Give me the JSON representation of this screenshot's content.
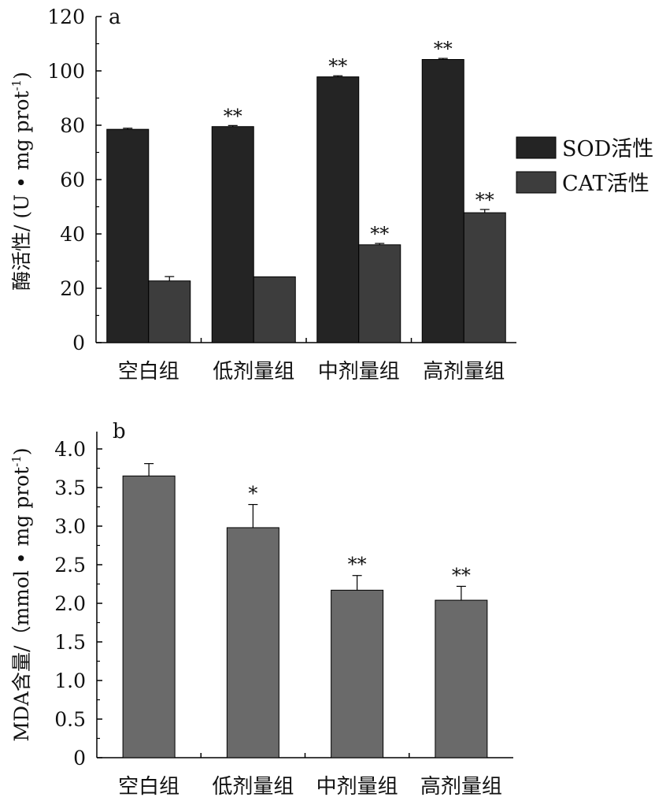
{
  "chart_data": [
    {
      "type": "bar",
      "panel_label": "a",
      "ylabel": "酶活性/ (U • mg prot",
      "ylabel_sup": "-1",
      "ylabel_tail": ")",
      "ylim": [
        0,
        120
      ],
      "yticks": [
        0,
        20,
        40,
        60,
        80,
        100,
        120
      ],
      "categories": [
        "空白组",
        "低剂量组",
        "中剂量组",
        "高剂量组"
      ],
      "legend_position": "right",
      "series": [
        {
          "name": "SOD活性",
          "color": "#242424",
          "values": [
            78.5,
            79.5,
            97.8,
            104.2
          ],
          "errors": [
            0.4,
            0.4,
            0.4,
            0.4
          ],
          "marks": [
            "",
            "**",
            "**",
            "**"
          ]
        },
        {
          "name": "CAT活性",
          "color": "#3d3d3d",
          "values": [
            22.7,
            24.2,
            36.0,
            47.8
          ],
          "errors": [
            1.6,
            0,
            0.5,
            1.2
          ],
          "marks": [
            "",
            "",
            "**",
            "**"
          ]
        }
      ]
    },
    {
      "type": "bar",
      "panel_label": "b",
      "ylabel": "MDA含量/（mmol • mg prot",
      "ylabel_sup": "-1",
      "ylabel_tail": ")",
      "ylim": [
        0,
        4.0
      ],
      "yticks": [
        "0",
        "0.5",
        "1.0",
        "1.5",
        "2.0",
        "2.5",
        "3.0",
        "3.5",
        "4.0"
      ],
      "categories": [
        "空白组",
        "低剂量组",
        "中剂量组",
        "高剂量组"
      ],
      "series": [
        {
          "color": "#6a6a6a",
          "values": [
            3.65,
            2.98,
            2.17,
            2.04
          ],
          "errors": [
            0.16,
            0.3,
            0.19,
            0.18
          ],
          "marks": [
            "",
            "*",
            "**",
            "**"
          ]
        }
      ]
    }
  ]
}
